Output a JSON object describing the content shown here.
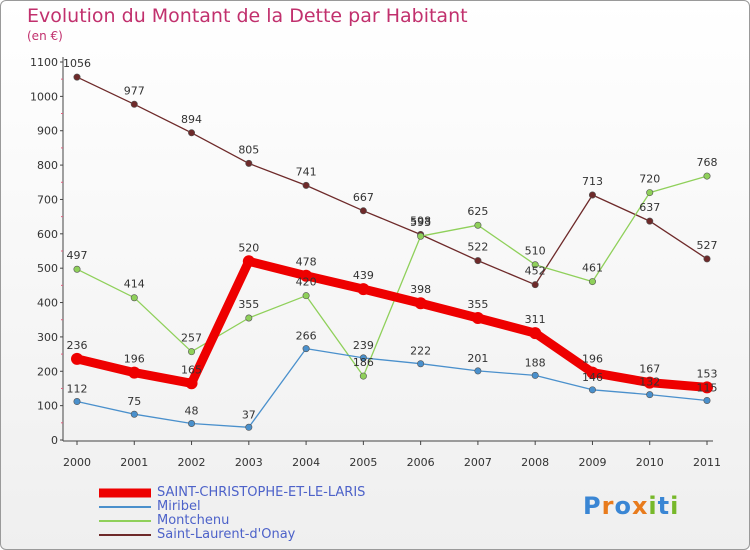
{
  "title": "Evolution du Montant de la Dette par Habitant",
  "unit": "(en €)",
  "logo": {
    "text": "Proxiti",
    "colors": [
      "#3a86d4",
      "#e87b1c",
      "#3a86d4",
      "#e87b1c",
      "#77b82a",
      "#3a86d4",
      "#77b82a"
    ]
  },
  "chart_data": {
    "type": "line",
    "title": "Evolution du Montant de la Dette par Habitant",
    "ylabel": "(en €)",
    "xlabel": "",
    "x": [
      "2000",
      "2001",
      "2002",
      "2003",
      "2004",
      "2005",
      "2006",
      "2007",
      "2008",
      "2009",
      "2010",
      "2011"
    ],
    "ylim": [
      0,
      1100
    ],
    "yticks": [
      "0",
      "100",
      "200",
      "300",
      "400",
      "500",
      "600",
      "700",
      "800",
      "900",
      "1000",
      "1100"
    ],
    "grid": false,
    "legend_position": "bottom-left",
    "series": [
      {
        "name": "SAINT-CHRISTOPHE-ET-LE-LARIS",
        "color": "#ee0000",
        "values": [
          236,
          196,
          165,
          520,
          478,
          439,
          398,
          355,
          311,
          196,
          167,
          153
        ]
      },
      {
        "name": "Miribel",
        "color": "#4a90cc",
        "values": [
          112,
          75,
          48,
          37,
          266,
          239,
          222,
          201,
          188,
          146,
          132,
          115
        ]
      },
      {
        "name": "Montchenu",
        "color": "#8fd05a",
        "values": [
          497,
          414,
          257,
          355,
          420,
          186,
          593,
          625,
          510,
          461,
          720,
          768
        ]
      },
      {
        "name": "Saint-Laurent-d'Onay",
        "color": "#6e2a2a",
        "values": [
          1056,
          977,
          894,
          805,
          741,
          667,
          598,
          522,
          452,
          713,
          637,
          527
        ]
      }
    ]
  }
}
